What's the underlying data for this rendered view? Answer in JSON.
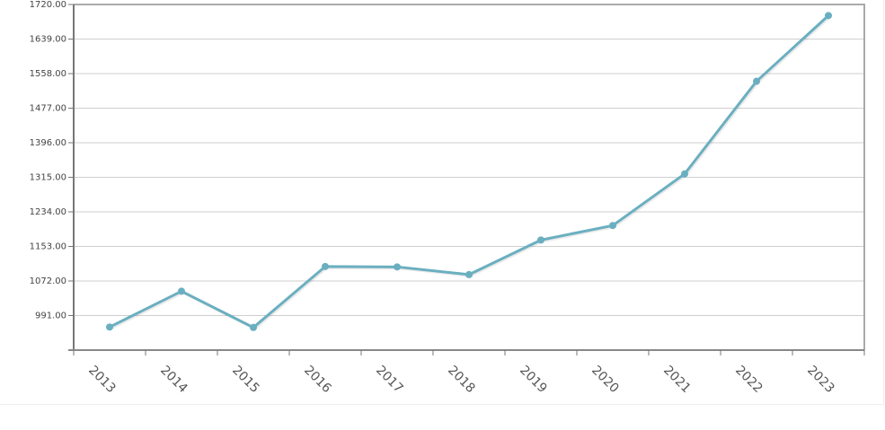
{
  "chart_data": {
    "type": "line",
    "title": "",
    "xlabel": "",
    "ylabel": "",
    "categories": [
      "2013",
      "2014",
      "2015",
      "2016",
      "2017",
      "2018",
      "2019",
      "2020",
      "2021",
      "2022",
      "2023"
    ],
    "series": [
      {
        "values": [
          964,
          1048,
          963,
          1106,
          1105,
          1087,
          1168,
          1202,
          1323,
          1540,
          1694
        ]
      }
    ],
    "ylim": [
      910,
      1720
    ],
    "y_ticks": [
      "991.00",
      "1072.00",
      "1153.00",
      "1234.00",
      "1315.00",
      "1396.00",
      "1477.00",
      "1558.00",
      "1639.00",
      "1720.00"
    ],
    "grid": true,
    "line_color": "#6aafc0",
    "marker_color": "#6aafc0"
  }
}
